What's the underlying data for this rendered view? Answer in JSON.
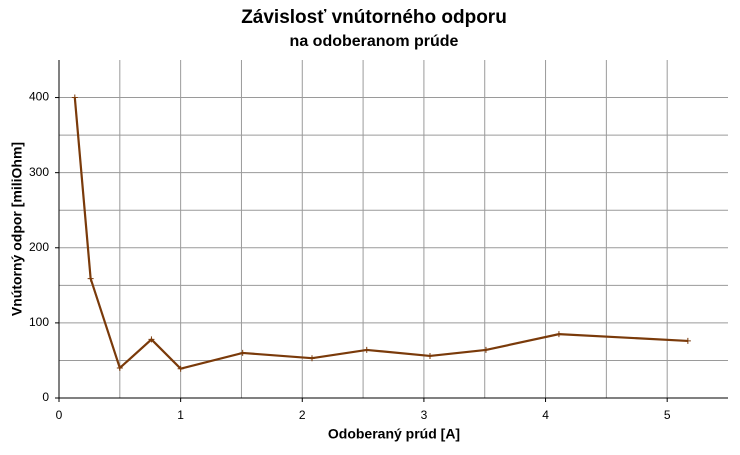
{
  "chart_data": {
    "type": "line",
    "title": "Závislosť vnútorného odporu",
    "subtitle": "na odoberanom prúde",
    "x_label": "Odoberaný prúd [A]",
    "y_label": "Vnútorný odpor [miliOhm]",
    "x": [
      0.13,
      0.26,
      0.5,
      0.76,
      1.0,
      1.51,
      2.08,
      2.53,
      3.05,
      3.51,
      4.11,
      5.17
    ],
    "series": [
      {
        "color": "#7a3a0a",
        "values": [
          400,
          159,
          40,
          78,
          39,
          60,
          53,
          64,
          56,
          64,
          85,
          76
        ]
      }
    ],
    "xlim": [
      0,
      5.5
    ],
    "xticks": [
      0,
      1,
      2,
      3,
      4,
      5
    ],
    "x_minor_grid": [
      0.5,
      1.5,
      2.5,
      3.5,
      4.5
    ],
    "ylim": [
      0,
      450
    ],
    "yticks": [
      0,
      100,
      200,
      300,
      400
    ],
    "y_minor_grid": [
      50,
      150,
      250,
      350
    ],
    "grid": true
  }
}
